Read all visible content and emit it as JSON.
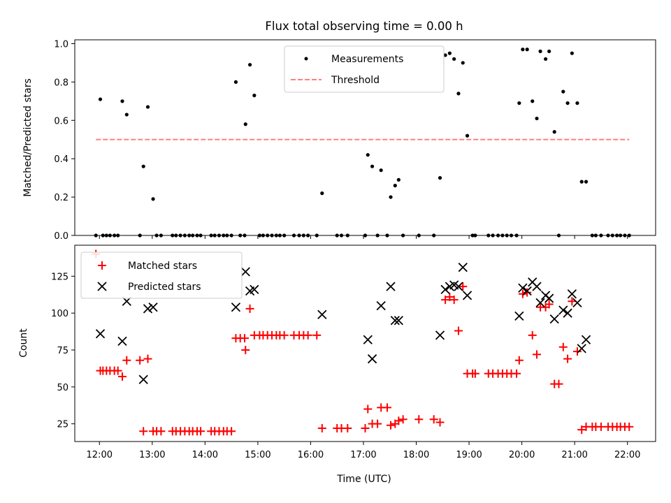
{
  "chart_data": [
    {
      "type": "scatter",
      "title": "Flux total observing time = 0.00 h",
      "xlabel": "",
      "ylabel": "Matched/Predicted stars",
      "xlim": [
        "11:32",
        "22:32"
      ],
      "ylim": [
        0,
        1.02
      ],
      "x_ticks": [
        "12:00",
        "13:00",
        "14:00",
        "15:00",
        "16:00",
        "17:00",
        "18:00",
        "19:00",
        "20:00",
        "21:00",
        "22:00"
      ],
      "y_ticks": [
        "0.0",
        "0.2",
        "0.4",
        "0.6",
        "0.8",
        "1.0"
      ],
      "grid": false,
      "legend": {
        "placement": "top-center",
        "entries": [
          "Measurements",
          "Threshold"
        ]
      },
      "series": [
        {
          "name": "Measurements",
          "color": "#000000",
          "marker": "dot",
          "points": [
            [
              "11:56",
              0
            ],
            [
              "12:01",
              0.71
            ],
            [
              "12:04",
              0
            ],
            [
              "12:08",
              0
            ],
            [
              "12:12",
              0
            ],
            [
              "12:17",
              0
            ],
            [
              "12:21",
              0
            ],
            [
              "12:26",
              0.7
            ],
            [
              "12:31",
              0.63
            ],
            [
              "12:46",
              0
            ],
            [
              "12:50",
              0.36
            ],
            [
              "12:55",
              0.67
            ],
            [
              "13:01",
              0.19
            ],
            [
              "13:05",
              0
            ],
            [
              "13:10",
              0
            ],
            [
              "13:23",
              0
            ],
            [
              "13:27",
              0
            ],
            [
              "13:32",
              0
            ],
            [
              "13:37",
              0
            ],
            [
              "13:42",
              0
            ],
            [
              "13:46",
              0
            ],
            [
              "13:51",
              0
            ],
            [
              "13:55",
              0
            ],
            [
              "14:07",
              0
            ],
            [
              "14:11",
              0
            ],
            [
              "14:16",
              0
            ],
            [
              "14:21",
              0
            ],
            [
              "14:25",
              0
            ],
            [
              "14:30",
              0
            ],
            [
              "14:35",
              0.8
            ],
            [
              "14:40",
              0
            ],
            [
              "14:45",
              0
            ],
            [
              "14:46",
              0.58
            ],
            [
              "14:51",
              0.89
            ],
            [
              "14:56",
              0.73
            ],
            [
              "15:02",
              0
            ],
            [
              "15:06",
              0
            ],
            [
              "15:11",
              0
            ],
            [
              "15:16",
              0
            ],
            [
              "15:21",
              0
            ],
            [
              "15:25",
              0
            ],
            [
              "15:30",
              0
            ],
            [
              "15:41",
              0
            ],
            [
              "15:47",
              0
            ],
            [
              "15:52",
              0
            ],
            [
              "15:57",
              0
            ],
            [
              "16:07",
              0
            ],
            [
              "16:13",
              0.22
            ],
            [
              "16:30",
              0
            ],
            [
              "16:35",
              0
            ],
            [
              "16:42",
              0
            ],
            [
              "17:02",
              0
            ],
            [
              "17:05",
              0.42
            ],
            [
              "17:10",
              0.36
            ],
            [
              "17:16",
              0
            ],
            [
              "17:20",
              0.34
            ],
            [
              "17:27",
              0
            ],
            [
              "17:31",
              0.2
            ],
            [
              "17:36",
              0.26
            ],
            [
              "17:40",
              0.29
            ],
            [
              "17:45",
              0
            ],
            [
              "18:03",
              0
            ],
            [
              "18:20",
              0
            ],
            [
              "18:27",
              0.3
            ],
            [
              "18:33",
              0.94
            ],
            [
              "18:38",
              0.95
            ],
            [
              "18:43",
              0.92
            ],
            [
              "18:48",
              0.74
            ],
            [
              "18:53",
              0.9
            ],
            [
              "18:58",
              0.52
            ],
            [
              "19:04",
              0
            ],
            [
              "19:07",
              0
            ],
            [
              "19:22",
              0
            ],
            [
              "19:27",
              0
            ],
            [
              "19:33",
              0
            ],
            [
              "19:38",
              0
            ],
            [
              "19:43",
              0
            ],
            [
              "19:48",
              0
            ],
            [
              "19:54",
              0
            ],
            [
              "19:57",
              0.69
            ],
            [
              "20:01",
              0.97
            ],
            [
              "20:06",
              0.97
            ],
            [
              "20:12",
              0.7
            ],
            [
              "20:17",
              0.61
            ],
            [
              "20:21",
              0.96
            ],
            [
              "20:27",
              0.92
            ],
            [
              "20:31",
              0.96
            ],
            [
              "20:37",
              0.54
            ],
            [
              "20:42",
              0
            ],
            [
              "20:47",
              0.75
            ],
            [
              "20:52",
              0.69
            ],
            [
              "20:57",
              0.95
            ],
            [
              "21:03",
              0.69
            ],
            [
              "21:08",
              0.28
            ],
            [
              "21:13",
              0.28
            ],
            [
              "21:20",
              0
            ],
            [
              "21:24",
              0
            ],
            [
              "21:30",
              0
            ],
            [
              "21:38",
              0
            ],
            [
              "21:43",
              0
            ],
            [
              "21:48",
              0
            ],
            [
              "21:52",
              0
            ],
            [
              "21:57",
              0
            ],
            [
              "22:02",
              0
            ]
          ]
        },
        {
          "name": "Threshold",
          "color": "#ff8080",
          "style": "dashed",
          "points": [
            [
              "11:56",
              0.5
            ],
            [
              "22:02",
              0.5
            ]
          ]
        }
      ]
    },
    {
      "type": "scatter",
      "title": "",
      "xlabel": "Time (UTC)",
      "ylabel": "Count",
      "xlim": [
        "11:32",
        "22:32"
      ],
      "ylim": [
        13,
        146
      ],
      "x_ticks": [
        "12:00",
        "13:00",
        "14:00",
        "15:00",
        "16:00",
        "17:00",
        "18:00",
        "19:00",
        "20:00",
        "21:00",
        "22:00"
      ],
      "y_ticks": [
        "25",
        "50",
        "75",
        "100",
        "125"
      ],
      "grid": false,
      "legend": {
        "placement": "top-left",
        "entries": [
          "Matched stars",
          "Predicted stars"
        ]
      },
      "series": [
        {
          "name": "Matched stars",
          "color": "#ff0000",
          "marker": "plus",
          "points": [
            [
              "11:56",
              140
            ],
            [
              "12:01",
              61
            ],
            [
              "12:04",
              61
            ],
            [
              "12:08",
              61
            ],
            [
              "12:12",
              61
            ],
            [
              "12:17",
              61
            ],
            [
              "12:21",
              61
            ],
            [
              "12:26",
              57
            ],
            [
              "12:31",
              68
            ],
            [
              "12:46",
              68
            ],
            [
              "12:50",
              20
            ],
            [
              "12:55",
              69
            ],
            [
              "13:01",
              20
            ],
            [
              "13:05",
              20
            ],
            [
              "13:10",
              20
            ],
            [
              "13:23",
              20
            ],
            [
              "13:27",
              20
            ],
            [
              "13:32",
              20
            ],
            [
              "13:37",
              20
            ],
            [
              "13:42",
              20
            ],
            [
              "13:46",
              20
            ],
            [
              "13:51",
              20
            ],
            [
              "13:55",
              20
            ],
            [
              "14:07",
              20
            ],
            [
              "14:11",
              20
            ],
            [
              "14:16",
              20
            ],
            [
              "14:21",
              20
            ],
            [
              "14:25",
              20
            ],
            [
              "14:30",
              20
            ],
            [
              "14:35",
              83
            ],
            [
              "14:40",
              83
            ],
            [
              "14:45",
              83
            ],
            [
              "14:46",
              75
            ],
            [
              "14:51",
              103
            ],
            [
              "14:56",
              85
            ],
            [
              "15:02",
              85
            ],
            [
              "15:06",
              85
            ],
            [
              "15:11",
              85
            ],
            [
              "15:16",
              85
            ],
            [
              "15:21",
              85
            ],
            [
              "15:25",
              85
            ],
            [
              "15:30",
              85
            ],
            [
              "15:41",
              85
            ],
            [
              "15:47",
              85
            ],
            [
              "15:52",
              85
            ],
            [
              "15:57",
              85
            ],
            [
              "16:07",
              85
            ],
            [
              "16:13",
              22
            ],
            [
              "16:30",
              22
            ],
            [
              "16:35",
              22
            ],
            [
              "16:42",
              22
            ],
            [
              "17:02",
              22
            ],
            [
              "17:05",
              35
            ],
            [
              "17:10",
              25
            ],
            [
              "17:16",
              25
            ],
            [
              "17:20",
              36
            ],
            [
              "17:27",
              36
            ],
            [
              "17:31",
              24
            ],
            [
              "17:36",
              25
            ],
            [
              "17:40",
              27
            ],
            [
              "17:45",
              28
            ],
            [
              "18:03",
              28
            ],
            [
              "18:20",
              28
            ],
            [
              "18:27",
              26
            ],
            [
              "18:33",
              109
            ],
            [
              "18:38",
              111
            ],
            [
              "18:43",
              109
            ],
            [
              "18:48",
              88
            ],
            [
              "18:53",
              118
            ],
            [
              "18:58",
              59
            ],
            [
              "19:04",
              59
            ],
            [
              "19:07",
              59
            ],
            [
              "19:22",
              59
            ],
            [
              "19:27",
              59
            ],
            [
              "19:33",
              59
            ],
            [
              "19:38",
              59
            ],
            [
              "19:43",
              59
            ],
            [
              "19:48",
              59
            ],
            [
              "19:54",
              59
            ],
            [
              "19:57",
              68
            ],
            [
              "20:01",
              113
            ],
            [
              "20:06",
              114
            ],
            [
              "20:12",
              85
            ],
            [
              "20:17",
              72
            ],
            [
              "20:21",
              104
            ],
            [
              "20:27",
              104
            ],
            [
              "20:31",
              106
            ],
            [
              "20:37",
              52
            ],
            [
              "20:42",
              52
            ],
            [
              "20:47",
              77
            ],
            [
              "20:52",
              69
            ],
            [
              "20:57",
              108
            ],
            [
              "21:03",
              74
            ],
            [
              "21:08",
              21
            ],
            [
              "21:13",
              23
            ],
            [
              "21:20",
              23
            ],
            [
              "21:24",
              23
            ],
            [
              "21:30",
              23
            ],
            [
              "21:38",
              23
            ],
            [
              "21:43",
              23
            ],
            [
              "21:48",
              23
            ],
            [
              "21:52",
              23
            ],
            [
              "21:57",
              23
            ],
            [
              "22:02",
              23
            ]
          ]
        },
        {
          "name": "Predicted stars",
          "color": "#000000",
          "marker": "x",
          "points": [
            [
              "12:01",
              86
            ],
            [
              "12:26",
              81
            ],
            [
              "12:31",
              108
            ],
            [
              "12:50",
              55
            ],
            [
              "12:55",
              103
            ],
            [
              "13:01",
              104
            ],
            [
              "14:35",
              104
            ],
            [
              "14:46",
              128
            ],
            [
              "14:51",
              115
            ],
            [
              "14:56",
              116
            ],
            [
              "16:13",
              99
            ],
            [
              "17:05",
              82
            ],
            [
              "17:10",
              69
            ],
            [
              "17:20",
              105
            ],
            [
              "17:31",
              118
            ],
            [
              "17:36",
              95
            ],
            [
              "17:40",
              95
            ],
            [
              "18:27",
              85
            ],
            [
              "18:33",
              116
            ],
            [
              "18:38",
              118
            ],
            [
              "18:43",
              119
            ],
            [
              "18:48",
              118
            ],
            [
              "18:53",
              131
            ],
            [
              "18:58",
              112
            ],
            [
              "19:57",
              98
            ],
            [
              "20:01",
              117
            ],
            [
              "20:06",
              115
            ],
            [
              "20:12",
              121
            ],
            [
              "20:17",
              118
            ],
            [
              "20:21",
              107
            ],
            [
              "20:27",
              112
            ],
            [
              "20:31",
              110
            ],
            [
              "20:37",
              96
            ],
            [
              "20:47",
              102
            ],
            [
              "20:52",
              100
            ],
            [
              "20:57",
              113
            ],
            [
              "21:03",
              107
            ],
            [
              "21:08",
              76
            ],
            [
              "21:13",
              82
            ]
          ]
        }
      ]
    }
  ]
}
